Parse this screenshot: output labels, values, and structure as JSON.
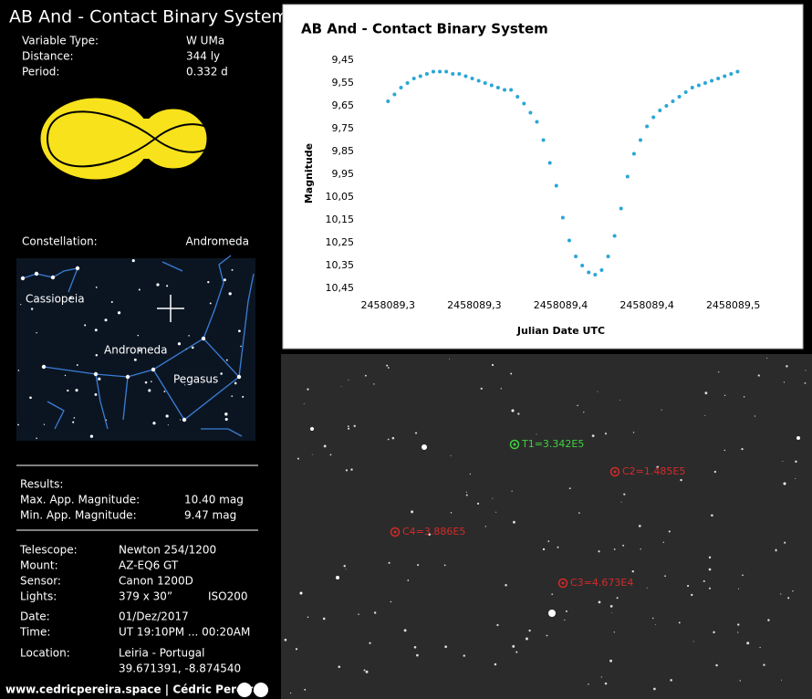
{
  "header": {
    "title": "AB And - Contact Binary System"
  },
  "info": [
    {
      "label": "Variable Type:",
      "value": "W UMa"
    },
    {
      "label": "Distance:",
      "value": "344 ly"
    },
    {
      "label": "Period:",
      "value": "0.332 d"
    }
  ],
  "constellation": {
    "label": "Constellation:",
    "value": "Andromeda",
    "names": [
      "Cassiopeia",
      "Andromeda",
      "Pegasus"
    ]
  },
  "results": {
    "title": "Results:",
    "rows": [
      {
        "label": "Max. App. Magnitude:",
        "value": "10.40 mag"
      },
      {
        "label": "Min. App. Magnitude:",
        "value": "9.47 mag"
      }
    ]
  },
  "equipment": [
    {
      "label": "Telescope:",
      "value": "Newton 254/1200"
    },
    {
      "label": "Mount:",
      "value": "AZ-EQ6 GT"
    },
    {
      "label": "Sensor:",
      "value": "Canon 1200D"
    },
    {
      "label": "Lights:",
      "value": "379 x 30”",
      "extra": "ISO200"
    },
    {
      "label": "Date:",
      "value": "01/Dez/2017"
    },
    {
      "label": "Time:",
      "value": "UT 19:10PM ... 00:20AM"
    },
    {
      "label": "Location:",
      "value": "Leiria - Portugal",
      "line2": "39.671391, -8.874540"
    }
  ],
  "footer": "www.cedricpereira.space | Cédric Pereira",
  "photo_labels": [
    {
      "text": "T1=3.342E5",
      "color": "#3fd13f"
    },
    {
      "text": "C2=1.485E5",
      "color": "#d42a2a"
    },
    {
      "text": "C4=3.886E5",
      "color": "#d42a2a"
    },
    {
      "text": "C3=4.673E4",
      "color": "#d42a2a"
    }
  ],
  "chart_data": {
    "type": "scatter",
    "title": "AB And - Contact Binary System",
    "xlabel": "Julian Date UTC",
    "ylabel": "Magnitude",
    "color": "#2aa6d6",
    "y_inverted": true,
    "xlim": [
      2458089.28,
      2458089.48
    ],
    "ylim": [
      9.45,
      10.45
    ],
    "xticks": [
      {
        "value": 2458089.3,
        "label": "2458089,3"
      },
      {
        "value": 2458089.34,
        "label": "2458089,3"
      },
      {
        "value": 2458089.38,
        "label": "2458089,4"
      },
      {
        "value": 2458089.42,
        "label": "2458089,4"
      },
      {
        "value": 2458089.46,
        "label": "2458089,5"
      }
    ],
    "yticks": [
      {
        "value": 9.45,
        "label": "9,45"
      },
      {
        "value": 9.55,
        "label": "9,55"
      },
      {
        "value": 9.65,
        "label": "9,65"
      },
      {
        "value": 9.75,
        "label": "9,75"
      },
      {
        "value": 9.85,
        "label": "9,85"
      },
      {
        "value": 9.95,
        "label": "9,95"
      },
      {
        "value": 10.05,
        "label": "10,05"
      },
      {
        "value": 10.15,
        "label": "10,15"
      },
      {
        "value": 10.25,
        "label": "10,25"
      },
      {
        "value": 10.35,
        "label": "10,35"
      },
      {
        "value": 10.45,
        "label": "10,45"
      }
    ],
    "x": [
      2458089.3,
      2458089.303,
      2458089.306,
      2458089.309,
      2458089.312,
      2458089.315,
      2458089.318,
      2458089.321,
      2458089.324,
      2458089.327,
      2458089.33,
      2458089.333,
      2458089.336,
      2458089.339,
      2458089.342,
      2458089.345,
      2458089.348,
      2458089.351,
      2458089.354,
      2458089.357,
      2458089.36,
      2458089.363,
      2458089.366,
      2458089.369,
      2458089.372,
      2458089.375,
      2458089.378,
      2458089.381,
      2458089.384,
      2458089.387,
      2458089.39,
      2458089.393,
      2458089.396,
      2458089.399,
      2458089.402,
      2458089.405,
      2458089.408,
      2458089.411,
      2458089.414,
      2458089.417,
      2458089.42,
      2458089.423,
      2458089.426,
      2458089.429,
      2458089.432,
      2458089.435,
      2458089.438,
      2458089.441,
      2458089.444,
      2458089.447,
      2458089.45,
      2458089.453,
      2458089.456,
      2458089.459,
      2458089.462
    ],
    "values": [
      9.63,
      9.6,
      9.57,
      9.55,
      9.53,
      9.52,
      9.51,
      9.5,
      9.5,
      9.5,
      9.51,
      9.51,
      9.52,
      9.53,
      9.54,
      9.55,
      9.56,
      9.57,
      9.58,
      9.58,
      9.61,
      9.64,
      9.68,
      9.72,
      9.8,
      9.9,
      10.0,
      10.14,
      10.24,
      10.31,
      10.35,
      10.38,
      10.39,
      10.37,
      10.31,
      10.22,
      10.1,
      9.96,
      9.86,
      9.8,
      9.74,
      9.7,
      9.67,
      9.65,
      9.63,
      9.61,
      9.59,
      9.57,
      9.56,
      9.55,
      9.54,
      9.53,
      9.52,
      9.51,
      9.5
    ]
  }
}
